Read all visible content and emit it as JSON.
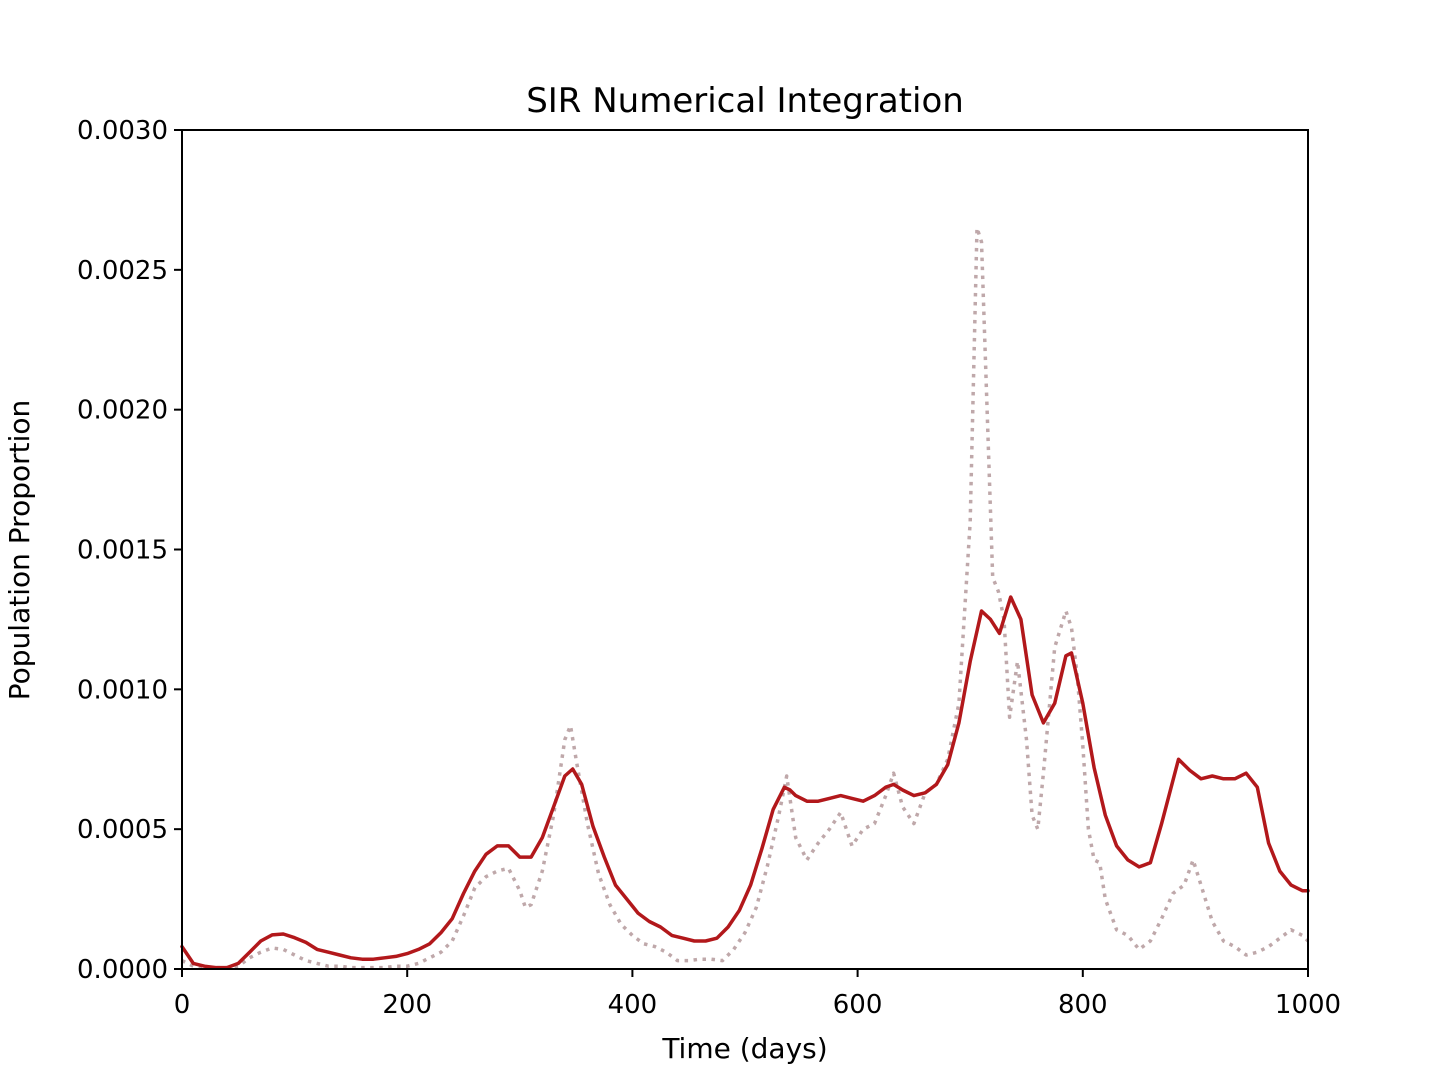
{
  "chart_data": {
    "type": "line",
    "title": "SIR Numerical Integration",
    "xlabel": "Time (days)",
    "ylabel": "Population Proportion",
    "xlim": [
      0,
      1000
    ],
    "ylim": [
      0,
      0.003
    ],
    "x_ticks": [
      0,
      200,
      400,
      600,
      800,
      1000
    ],
    "x_tick_labels": [
      "0",
      "200",
      "400",
      "600",
      "800",
      "1000"
    ],
    "y_ticks": [
      0,
      0.0005,
      0.001,
      0.0015,
      0.002,
      0.0025,
      0.003
    ],
    "y_tick_labels": [
      "0.0000",
      "0.0005",
      "0.0010",
      "0.0015",
      "0.0020",
      "0.0025",
      "0.0030"
    ],
    "grid": false,
    "series": [
      {
        "style": "solid",
        "color": "#b2181b",
        "x": [
          0,
          10,
          20,
          30,
          40,
          50,
          60,
          70,
          80,
          90,
          100,
          110,
          120,
          130,
          140,
          150,
          160,
          170,
          180,
          190,
          200,
          210,
          220,
          230,
          240,
          250,
          260,
          270,
          280,
          290,
          300,
          310,
          320,
          330,
          340,
          347,
          355,
          365,
          375,
          385,
          395,
          405,
          415,
          425,
          435,
          445,
          455,
          465,
          475,
          485,
          495,
          505,
          515,
          525,
          535,
          540,
          545,
          555,
          565,
          575,
          585,
          595,
          605,
          615,
          625,
          632,
          640,
          650,
          660,
          670,
          680,
          690,
          700,
          710,
          718,
          726,
          736,
          745,
          755,
          765,
          775,
          785,
          790,
          800,
          810,
          820,
          830,
          840,
          850,
          860,
          870,
          885,
          895,
          905,
          915,
          925,
          935,
          945,
          955,
          965,
          975,
          985,
          995,
          1000
        ],
        "y": [
          8e-05,
          2e-05,
          1e-05,
          5e-06,
          5e-06,
          2e-05,
          6e-05,
          0.0001,
          0.000122,
          0.000125,
          0.000112,
          9.5e-05,
          7e-05,
          6e-05,
          5e-05,
          4e-05,
          3.5e-05,
          3.5e-05,
          4e-05,
          4.5e-05,
          5.5e-05,
          7e-05,
          9e-05,
          0.00013,
          0.00018,
          0.00027,
          0.00035,
          0.00041,
          0.00044,
          0.00044,
          0.0004,
          0.0004,
          0.00047,
          0.00058,
          0.00069,
          0.000715,
          0.00066,
          0.00051,
          0.0004,
          0.0003,
          0.00025,
          0.0002,
          0.00017,
          0.00015,
          0.00012,
          0.00011,
          0.0001,
          0.0001,
          0.00011,
          0.00015,
          0.00021,
          0.0003,
          0.00043,
          0.00057,
          0.00065,
          0.00064,
          0.00062,
          0.0006,
          0.0006,
          0.00061,
          0.00062,
          0.00061,
          0.0006,
          0.00062,
          0.00065,
          0.00066,
          0.00064,
          0.00062,
          0.00063,
          0.00066,
          0.00073,
          0.00088,
          0.0011,
          0.00128,
          0.00125,
          0.0012,
          0.00133,
          0.00125,
          0.00098,
          0.00088,
          0.00095,
          0.00112,
          0.00113,
          0.00095,
          0.00072,
          0.00055,
          0.00044,
          0.00039,
          0.000365,
          0.00038,
          0.00052,
          0.00075,
          0.00071,
          0.00068,
          0.00069,
          0.00068,
          0.00068,
          0.0007,
          0.00065,
          0.00045,
          0.00035,
          0.0003,
          0.00028,
          0.00028
        ]
      },
      {
        "style": "dotted",
        "color": "#bfa8aa",
        "x": [
          0,
          10,
          20,
          30,
          40,
          50,
          60,
          70,
          80,
          90,
          100,
          110,
          120,
          130,
          140,
          150,
          160,
          170,
          180,
          190,
          200,
          210,
          220,
          230,
          240,
          250,
          260,
          270,
          280,
          290,
          300,
          305,
          310,
          320,
          330,
          340,
          345,
          350,
          360,
          370,
          380,
          390,
          400,
          410,
          420,
          430,
          440,
          450,
          460,
          470,
          480,
          490,
          500,
          510,
          520,
          530,
          537,
          545,
          555,
          565,
          575,
          585,
          595,
          605,
          615,
          625,
          632,
          640,
          650,
          660,
          670,
          680,
          690,
          700,
          706,
          710,
          715,
          720,
          725,
          730,
          735,
          742,
          750,
          755,
          760,
          765,
          775,
          785,
          790,
          795,
          800,
          805,
          810,
          815,
          820,
          830,
          840,
          850,
          860,
          870,
          880,
          890,
          898,
          905,
          915,
          925,
          935,
          945,
          955,
          965,
          975,
          985,
          995,
          1000
        ],
        "y": [
          3e-05,
          1e-05,
          5e-06,
          5e-06,
          5e-06,
          1e-05,
          4e-05,
          6e-05,
          7.5e-05,
          7e-05,
          5e-05,
          3e-05,
          2e-05,
          1e-05,
          1e-05,
          5e-06,
          5e-06,
          5e-06,
          5e-06,
          1e-05,
          1e-05,
          2e-05,
          4e-05,
          6e-05,
          0.0001,
          0.00019,
          0.00029,
          0.00033,
          0.00035,
          0.00036,
          0.00028,
          0.00022,
          0.00023,
          0.00035,
          0.00055,
          0.00082,
          0.00087,
          0.00075,
          0.00052,
          0.00034,
          0.00023,
          0.00016,
          0.00012,
          9e-05,
          8e-05,
          6e-05,
          3e-05,
          3e-05,
          3.5e-05,
          3.5e-05,
          3e-05,
          7e-05,
          0.00013,
          0.00022,
          0.00037,
          0.00055,
          0.00069,
          0.00047,
          0.00039,
          0.00045,
          0.0005,
          0.00056,
          0.00044,
          0.0005,
          0.00052,
          0.00062,
          0.0007,
          0.00058,
          0.00052,
          0.00063,
          0.00066,
          0.00075,
          0.00095,
          0.0016,
          0.00265,
          0.0026,
          0.002,
          0.0014,
          0.00135,
          0.00125,
          0.0009,
          0.0011,
          0.00082,
          0.00055,
          0.0005,
          0.0007,
          0.00115,
          0.00128,
          0.00122,
          0.00105,
          0.0008,
          0.0005,
          0.00039,
          0.00038,
          0.00025,
          0.00014,
          0.00012,
          7e-05,
          0.0001,
          0.00018,
          0.00027,
          0.0003,
          0.00039,
          0.0003,
          0.00017,
          0.0001,
          8e-05,
          5e-05,
          6e-05,
          8e-05,
          0.00011,
          0.00014,
          0.00012,
          0.0001
        ]
      }
    ]
  }
}
